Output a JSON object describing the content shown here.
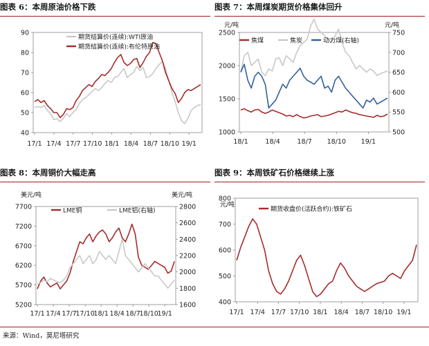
{
  "footer": "来源：Wind，莫尼塔研究",
  "chart_data": [
    {
      "type": "line",
      "title": "图表 6：本周原油价格下跌",
      "x_ticks": [
        "17/1",
        "17/4",
        "17/7",
        "17/10",
        "18/1",
        "18/4",
        "18/7",
        "18/10",
        "19/1"
      ],
      "ylim": [
        40,
        90
      ],
      "y_ticks": [
        40,
        50,
        60,
        70,
        80,
        90
      ],
      "legend_placement": "top-left",
      "series": [
        {
          "name": "期货结算价(连续):WTI原油",
          "color": "#c8c8c8",
          "values": [
            52.6,
            53.0,
            52.5,
            53.5,
            51.0,
            49.5,
            46.5,
            47.0,
            45.5,
            47.0,
            49.5,
            48.0,
            50.0,
            51.5,
            54.5,
            56.5,
            57.5,
            59.0,
            60.5,
            62.0,
            61.0,
            62.5,
            64.5,
            66.0,
            65.0,
            67.5,
            68.0,
            70.0,
            72.0,
            67.5,
            69.0,
            70.0,
            73.0,
            71.0,
            72.5,
            67.5,
            68.0,
            69.5,
            72.0,
            74.0,
            75.5,
            72.0,
            66.0,
            60.0,
            55.5,
            50.0,
            46.0,
            44.5,
            47.0,
            51.0,
            52.5,
            53.5,
            54.0
          ]
        },
        {
          "name": "期货结算价(连续):布伦特原油",
          "color": "#a52a2a",
          "values": [
            55.5,
            56.5,
            55.0,
            56.0,
            53.5,
            52.0,
            50.0,
            50.0,
            47.5,
            49.0,
            52.0,
            51.5,
            52.5,
            56.0,
            58.0,
            61.0,
            62.5,
            64.0,
            63.0,
            65.5,
            67.0,
            69.0,
            68.5,
            70.0,
            72.0,
            75.0,
            77.5,
            79.0,
            75.0,
            73.5,
            74.5,
            76.5,
            77.0,
            72.5,
            75.0,
            78.0,
            80.0,
            85.0,
            84.5,
            80.0,
            76.0,
            70.0,
            66.0,
            62.0,
            59.5,
            55.0,
            57.0,
            60.0,
            61.5,
            61.0,
            62.0,
            63.0,
            64.0
          ]
        }
      ]
    },
    {
      "type": "line",
      "title": "图表 7：本周煤炭期货价格集体回升",
      "x_ticks": [
        "18/1",
        "18/4",
        "18/7",
        "18/10",
        "19/1"
      ],
      "ylim": [
        1000,
        2500
      ],
      "y_ticks": [
        1000,
        1500,
        2000,
        2500
      ],
      "y_unit": "元/吨",
      "y2lim": [
        500,
        750
      ],
      "y2_ticks": [
        500,
        550,
        600,
        650,
        700,
        750
      ],
      "y2_unit": "元/吨",
      "legend_placement": "top",
      "series": [
        {
          "name": "焦煤",
          "color": "#a52a2a",
          "axis": "left",
          "values": [
            1330,
            1350,
            1320,
            1300,
            1330,
            1340,
            1300,
            1280,
            1300,
            1330,
            1310,
            1290,
            1270,
            1240,
            1250,
            1230,
            1260,
            1230,
            1210,
            1220,
            1240,
            1250,
            1260,
            1230,
            1240,
            1250,
            1270,
            1290,
            1310,
            1300,
            1330,
            1310,
            1290,
            1280,
            1260,
            1250,
            1240,
            1230,
            1220,
            1250,
            1230,
            1240,
            1270
          ]
        },
        {
          "name": "焦炭",
          "color": "#c8c8c8",
          "axis": "left",
          "values": [
            1900,
            2150,
            2200,
            2000,
            2050,
            2100,
            1900,
            1850,
            1950,
            1920,
            2100,
            2120,
            2000,
            2150,
            2100,
            2050,
            2200,
            2300,
            2350,
            2400,
            2600,
            2700,
            2550,
            2500,
            2450,
            2400,
            2350,
            2450,
            2550,
            2350,
            2200,
            2150,
            2050,
            1950,
            2000,
            1950,
            1900,
            1950,
            1920,
            1850,
            1880,
            1900,
            1920
          ]
        },
        {
          "name": "动力煤(右轴)",
          "color": "#2f5f9c",
          "axis": "right",
          "values": [
            650,
            670,
            630,
            610,
            640,
            650,
            640,
            620,
            560,
            570,
            580,
            600,
            620,
            610,
            630,
            640,
            650,
            660,
            640,
            630,
            625,
            620,
            630,
            640,
            610,
            615,
            600,
            630,
            640,
            625,
            610,
            600,
            590,
            580,
            570,
            560,
            580,
            575,
            585,
            570,
            575,
            580,
            585
          ]
        }
      ]
    },
    {
      "type": "line",
      "title": "图表 8：本周铜价大幅走高",
      "x_ticks": [
        "17/1",
        "17/4",
        "17/7",
        "17/10",
        "18/1",
        "18/4",
        "18/7",
        "18/10",
        "19/1"
      ],
      "ylim": [
        5200,
        7700
      ],
      "y_ticks": [
        5200,
        5700,
        6200,
        6700,
        7200,
        7700
      ],
      "y_unit": "美元/吨",
      "y2lim": [
        1600,
        2800
      ],
      "y2_ticks": [
        1600,
        1800,
        2000,
        2200,
        2400,
        2600,
        2800
      ],
      "y2_unit": "美元/吨",
      "legend_placement": "top",
      "series": [
        {
          "name": "LME铜",
          "color": "#a52a2a",
          "axis": "left",
          "values": [
            5600,
            5800,
            5900,
            5750,
            5650,
            5700,
            5750,
            5600,
            5700,
            5800,
            6000,
            6300,
            6550,
            6800,
            6750,
            6900,
            7000,
            6800,
            6950,
            7050,
            7100,
            7000,
            6800,
            6900,
            7050,
            7150,
            6900,
            6800,
            7000,
            7250,
            7000,
            6400,
            6200,
            6150,
            6100,
            6200,
            6300,
            6250,
            6200,
            6150,
            6000,
            6050,
            6300
          ]
        },
        {
          "name": "LME铝(右轴)",
          "color": "#c8c8c8",
          "axis": "right",
          "values": [
            1850,
            1870,
            1900,
            1880,
            1920,
            1900,
            1880,
            1870,
            1900,
            1950,
            2050,
            2100,
            2150,
            2200,
            2100,
            2150,
            2200,
            2100,
            2150,
            2250,
            2200,
            2150,
            2200,
            2150,
            2100,
            2250,
            2400,
            2200,
            2150,
            2100,
            2050,
            2000,
            2050,
            2100,
            2050,
            2000,
            1950,
            1950,
            1900,
            1850,
            1800,
            1850,
            1900
          ]
        }
      ]
    },
    {
      "type": "line",
      "title": "图表 9：本周铁矿石价格继续上涨",
      "x_ticks": [
        "17/1",
        "17/4",
        "17/7",
        "17/10",
        "18/1",
        "18/4",
        "18/7",
        "18/10",
        "19/1"
      ],
      "ylim": [
        400,
        800
      ],
      "y_ticks": [
        400,
        500,
        600,
        700,
        800
      ],
      "y_unit": "元/吨",
      "legend_placement": "top-left",
      "series": [
        {
          "name": "期货收盘价(活跃合约):铁矿石",
          "color": "#a52a2a",
          "values": [
            560,
            610,
            650,
            690,
            720,
            700,
            650,
            600,
            520,
            470,
            440,
            430,
            450,
            480,
            520,
            560,
            580,
            540,
            490,
            440,
            420,
            430,
            450,
            470,
            480,
            520,
            550,
            530,
            500,
            480,
            460,
            450,
            440,
            450,
            460,
            470,
            475,
            480,
            500,
            510,
            500,
            490,
            520,
            540,
            560,
            620
          ]
        }
      ]
    }
  ]
}
